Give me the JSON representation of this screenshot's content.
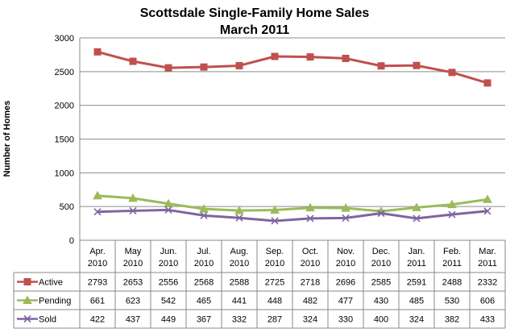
{
  "chart_data": {
    "type": "line",
    "title": "Scottsdale Single-Family Home Sales",
    "subtitle": "March 2011",
    "ylabel": "Number of Homes",
    "xlabel": "",
    "ylim": [
      0,
      3000
    ],
    "yticks": [
      "0",
      "500",
      "1000",
      "1500",
      "2000",
      "2500",
      "3000"
    ],
    "grid": "horizontal",
    "legend": "data-table-rows",
    "categories": [
      [
        "Apr.",
        "2010"
      ],
      [
        "May",
        "2010"
      ],
      [
        "Jun.",
        "2010"
      ],
      [
        "Jul.",
        "2010"
      ],
      [
        "Aug.",
        "2010"
      ],
      [
        "Sep.",
        "2010"
      ],
      [
        "Oct.",
        "2010"
      ],
      [
        "Nov.",
        "2010"
      ],
      [
        "Dec.",
        "2010"
      ],
      [
        "Jan.",
        "2011"
      ],
      [
        "Feb.",
        "2011"
      ],
      [
        "Mar.",
        "2011"
      ]
    ],
    "series": [
      {
        "name": "Active",
        "color": "#c0504d",
        "marker": "square",
        "values": [
          2793,
          2653,
          2556,
          2568,
          2588,
          2725,
          2718,
          2696,
          2585,
          2591,
          2488,
          2332
        ]
      },
      {
        "name": "Pending",
        "color": "#9bbb59",
        "marker": "triangle",
        "values": [
          661,
          623,
          542,
          465,
          441,
          448,
          482,
          477,
          430,
          485,
          530,
          606
        ]
      },
      {
        "name": "Sold",
        "color": "#8064a2",
        "marker": "x",
        "values": [
          422,
          437,
          449,
          367,
          332,
          287,
          324,
          330,
          400,
          324,
          382,
          433
        ]
      }
    ]
  }
}
